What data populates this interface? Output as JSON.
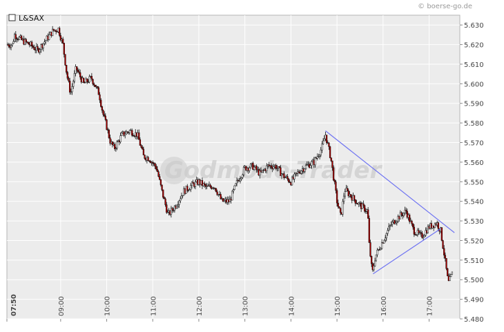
{
  "credit": "© boerse-go.de",
  "watermark": "Godmode-Trader",
  "chart_data": {
    "type": "candlestick",
    "legend": [
      "L&SAX"
    ],
    "legend_placement": "top-left",
    "grid": true,
    "y_axis_side": "right",
    "ylim": [
      5.48,
      5.635
    ],
    "y_ticks": [
      "5.630",
      "5.620",
      "5.610",
      "5.600",
      "5.590",
      "5.580",
      "5.570",
      "5.560",
      "5.550",
      "5.540",
      "5.530",
      "5.520",
      "5.510",
      "5.500",
      "5.490",
      "5.480"
    ],
    "x_range_hours": [
      "07:50",
      "17:40"
    ],
    "x_ticks": [
      "07:50",
      "09:00",
      "10:00",
      "11:00",
      "12:00",
      "13:00",
      "14:00",
      "15:00",
      "16:00",
      "17:00"
    ],
    "price_path": [
      [
        "07:50",
        5.62
      ],
      [
        "07:57",
        5.62
      ],
      [
        "08:00",
        5.625
      ],
      [
        "08:10",
        5.622
      ],
      [
        "08:20",
        5.62
      ],
      [
        "08:30",
        5.617
      ],
      [
        "08:40",
        5.622
      ],
      [
        "08:50",
        5.627
      ],
      [
        "08:57",
        5.628
      ],
      [
        "09:03",
        5.62
      ],
      [
        "09:08",
        5.605
      ],
      [
        "09:13",
        5.595
      ],
      [
        "09:20",
        5.608
      ],
      [
        "09:30",
        5.6
      ],
      [
        "09:40",
        5.603
      ],
      [
        "09:50",
        5.595
      ],
      [
        "09:55",
        5.585
      ],
      [
        "10:00",
        5.578
      ],
      [
        "10:05",
        5.57
      ],
      [
        "10:10",
        5.567
      ],
      [
        "10:20",
        5.574
      ],
      [
        "10:30",
        5.576
      ],
      [
        "10:40",
        5.574
      ],
      [
        "10:48",
        5.563
      ],
      [
        "10:55",
        5.562
      ],
      [
        "11:05",
        5.557
      ],
      [
        "11:12",
        5.545
      ],
      [
        "11:20",
        5.533
      ],
      [
        "11:30",
        5.538
      ],
      [
        "11:40",
        5.545
      ],
      [
        "11:50",
        5.548
      ],
      [
        "12:00",
        5.55
      ],
      [
        "12:10",
        5.547
      ],
      [
        "12:20",
        5.548
      ],
      [
        "12:30",
        5.54
      ],
      [
        "12:40",
        5.54
      ],
      [
        "12:50",
        5.55
      ],
      [
        "13:00",
        5.557
      ],
      [
        "13:10",
        5.558
      ],
      [
        "13:20",
        5.554
      ],
      [
        "13:30",
        5.558
      ],
      [
        "13:40",
        5.558
      ],
      [
        "13:50",
        5.553
      ],
      [
        "14:00",
        5.55
      ],
      [
        "14:10",
        5.555
      ],
      [
        "14:20",
        5.558
      ],
      [
        "14:30",
        5.56
      ],
      [
        "14:40",
        5.567
      ],
      [
        "14:45",
        5.574
      ],
      [
        "14:52",
        5.562
      ],
      [
        "15:00",
        5.54
      ],
      [
        "15:05",
        5.532
      ],
      [
        "15:10",
        5.546
      ],
      [
        "15:20",
        5.542
      ],
      [
        "15:30",
        5.538
      ],
      [
        "15:40",
        5.535
      ],
      [
        "15:42",
        5.518
      ],
      [
        "15:46",
        5.503
      ],
      [
        "15:50",
        5.512
      ],
      [
        "16:00",
        5.52
      ],
      [
        "16:10",
        5.528
      ],
      [
        "16:20",
        5.532
      ],
      [
        "16:30",
        5.535
      ],
      [
        "16:40",
        5.525
      ],
      [
        "16:50",
        5.522
      ],
      [
        "17:00",
        5.527
      ],
      [
        "17:10",
        5.529
      ],
      [
        "17:15",
        5.525
      ],
      [
        "17:20",
        5.512
      ],
      [
        "17:25",
        5.498
      ],
      [
        "17:30",
        5.503
      ]
    ],
    "trendlines": [
      {
        "from": [
          "14:45",
          5.576
        ],
        "to": [
          "17:33",
          5.524
        ]
      },
      {
        "from": [
          "15:47",
          5.503
        ],
        "to": [
          "17:15",
          5.526
        ]
      }
    ]
  }
}
